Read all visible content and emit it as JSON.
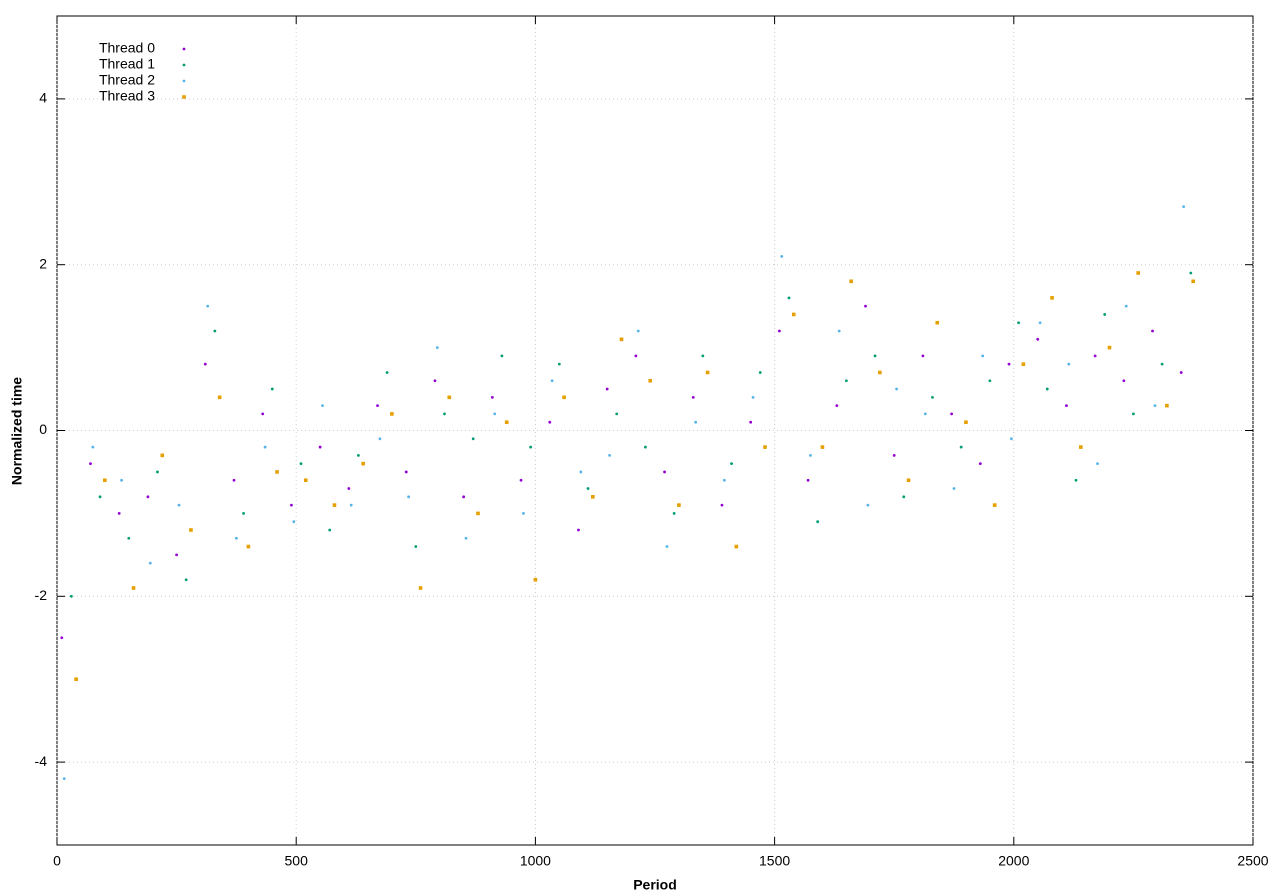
{
  "chart_data": {
    "type": "scatter",
    "xlabel": "Period",
    "ylabel": "Normalized time",
    "xlim": [
      0,
      2500
    ],
    "ylim": [
      -5,
      5
    ],
    "xticks": [
      0,
      500,
      1000,
      1500,
      2000,
      2500
    ],
    "yticks": [
      -4,
      -2,
      0,
      2,
      4
    ],
    "grid": true,
    "legend": "upper left",
    "series": [
      {
        "name": "Thread 0",
        "color": "#9400d3",
        "marker": "dot",
        "x": [
          10,
          70,
          130,
          190,
          250,
          310,
          370,
          430,
          490,
          550,
          610,
          670,
          730,
          790,
          850,
          910,
          970,
          1030,
          1090,
          1150,
          1210,
          1270,
          1330,
          1390,
          1450,
          1510,
          1570,
          1630,
          1690,
          1750,
          1810,
          1870,
          1930,
          1990,
          2050,
          2110,
          2170,
          2230,
          2290,
          2350
        ],
        "values": [
          -2.5,
          -0.4,
          -1.0,
          -0.8,
          -1.5,
          0.8,
          -0.6,
          0.2,
          -0.9,
          -0.2,
          -0.7,
          0.3,
          -0.5,
          0.6,
          -0.8,
          0.4,
          -0.6,
          0.1,
          -1.2,
          0.5,
          0.9,
          -0.5,
          0.4,
          -0.9,
          0.1,
          1.2,
          -0.6,
          0.3,
          1.5,
          -0.3,
          0.9,
          0.2,
          -0.4,
          0.8,
          1.1,
          0.3,
          0.9,
          0.6,
          1.2,
          0.7
        ]
      },
      {
        "name": "Thread 1",
        "color": "#009e73",
        "marker": "dot",
        "x": [
          30,
          90,
          150,
          210,
          270,
          330,
          390,
          450,
          510,
          570,
          630,
          690,
          750,
          810,
          870,
          930,
          990,
          1050,
          1110,
          1170,
          1230,
          1290,
          1350,
          1410,
          1470,
          1530,
          1590,
          1650,
          1710,
          1770,
          1830,
          1890,
          1950,
          2010,
          2070,
          2130,
          2190,
          2250,
          2310,
          2370
        ],
        "values": [
          -2.0,
          -0.8,
          -1.3,
          -0.5,
          -1.8,
          1.2,
          -1.0,
          0.5,
          -0.4,
          -1.2,
          -0.3,
          0.7,
          -1.4,
          0.2,
          -0.1,
          0.9,
          -0.2,
          0.8,
          -0.7,
          0.2,
          -0.2,
          -1.0,
          0.9,
          -0.4,
          0.7,
          1.6,
          -1.1,
          0.6,
          0.9,
          -0.8,
          0.4,
          -0.2,
          0.6,
          1.3,
          0.5,
          -0.6,
          1.4,
          0.2,
          0.8,
          1.9
        ]
      },
      {
        "name": "Thread 2",
        "color": "#56b4e9",
        "marker": "dot",
        "x": [
          15,
          75,
          135,
          195,
          255,
          315,
          375,
          435,
          495,
          555,
          615,
          675,
          735,
          795,
          855,
          915,
          975,
          1035,
          1095,
          1155,
          1215,
          1275,
          1335,
          1395,
          1455,
          1515,
          1575,
          1635,
          1695,
          1755,
          1815,
          1875,
          1935,
          1995,
          2055,
          2115,
          2175,
          2235,
          2295,
          2355
        ],
        "values": [
          -4.2,
          -0.2,
          -0.6,
          -1.6,
          -0.9,
          1.5,
          -1.3,
          -0.2,
          -1.1,
          0.3,
          -0.9,
          -0.1,
          -0.8,
          1.0,
          -1.3,
          0.2,
          -1.0,
          0.6,
          -0.5,
          -0.3,
          1.2,
          -1.4,
          0.1,
          -0.6,
          0.4,
          2.1,
          -0.3,
          1.2,
          -0.9,
          0.5,
          0.2,
          -0.7,
          0.9,
          -0.1,
          1.3,
          0.8,
          -0.4,
          1.5,
          0.3,
          2.7
        ]
      },
      {
        "name": "Thread 3",
        "color": "#e69f00",
        "marker": "square",
        "x": [
          40,
          100,
          160,
          220,
          280,
          340,
          400,
          460,
          520,
          580,
          640,
          700,
          760,
          820,
          880,
          940,
          1000,
          1060,
          1120,
          1180,
          1240,
          1300,
          1360,
          1420,
          1480,
          1540,
          1600,
          1660,
          1720,
          1780,
          1840,
          1900,
          1960,
          2020,
          2080,
          2140,
          2200,
          2260,
          2320,
          2375
        ],
        "values": [
          -3.0,
          -0.6,
          -1.9,
          -0.3,
          -1.2,
          0.4,
          -1.4,
          -0.5,
          -0.6,
          -0.9,
          -0.4,
          0.2,
          -1.9,
          0.4,
          -1.0,
          0.1,
          -1.8,
          0.4,
          -0.8,
          1.1,
          0.6,
          -0.9,
          0.7,
          -1.4,
          -0.2,
          1.4,
          -0.2,
          1.8,
          0.7,
          -0.6,
          1.3,
          0.1,
          -0.9,
          0.8,
          1.6,
          -0.2,
          1.0,
          1.9,
          0.3,
          1.8
        ]
      }
    ]
  }
}
